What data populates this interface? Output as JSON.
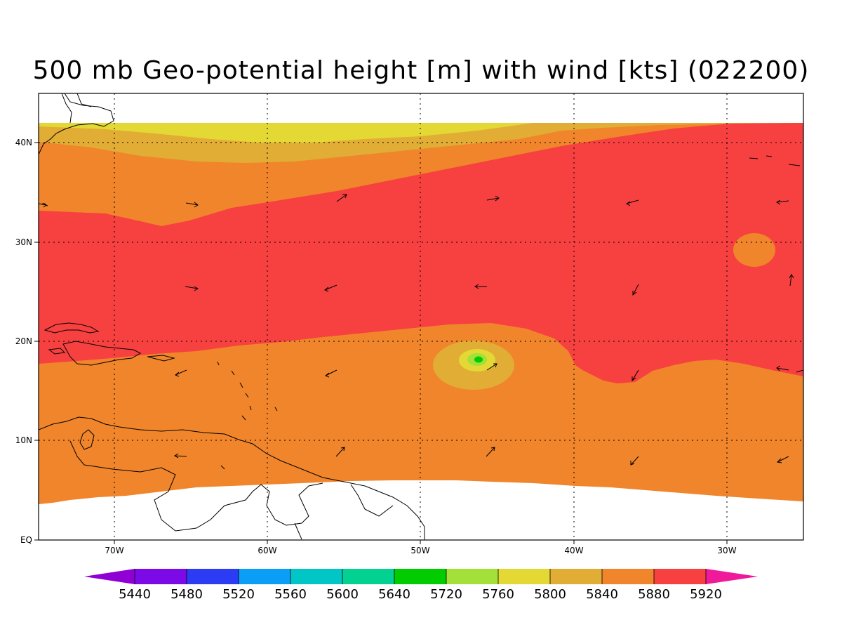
{
  "title": "500 mb Geo-potential height [m] with wind [kts] (022200)",
  "colors": {
    "c5840": "#e1ad34",
    "c5880": "#f0852b",
    "c5920": "#f74040",
    "c5800": "#e4d835",
    "c5760": "#a3e03a",
    "c5720": "#10cd14",
    "c5640": "#00cc00"
  },
  "axes": {
    "lon_labels": [
      "70W",
      "60W",
      "50W",
      "40W",
      "30W"
    ],
    "lat_labels": [
      "EQ",
      "10N",
      "20N",
      "30N",
      "40N"
    ]
  },
  "colorbar": {
    "labels": [
      "5440",
      "5480",
      "5520",
      "5560",
      "5600",
      "5640",
      "5720",
      "5760",
      "5800",
      "5840",
      "5880",
      "5920"
    ],
    "colors": [
      "#9000d4",
      "#7b0ae6",
      "#2c3cf4",
      "#0a9ef6",
      "#02c6c6",
      "#03d192",
      "#00cc00",
      "#a3e03a",
      "#e4d835",
      "#e1ad34",
      "#f0852b",
      "#f74040",
      "#f0199a"
    ]
  }
}
